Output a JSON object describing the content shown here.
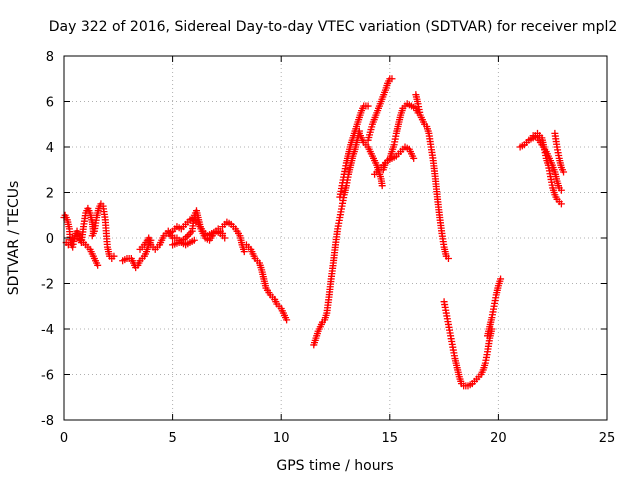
{
  "chart_data": {
    "type": "scatter",
    "title": "Day 322 of 2016, Sidereal Day-to-day VTEC variation (SDTVAR) for receiver mpl2",
    "xlabel": "GPS time / hours",
    "ylabel": "SDTVAR / TECUs",
    "xlim": [
      0,
      25
    ],
    "ylim": [
      -8,
      8
    ],
    "x_ticks": [
      0,
      5,
      10,
      15,
      20,
      25
    ],
    "y_ticks": [
      -8,
      -6,
      -4,
      -2,
      0,
      2,
      4,
      6,
      8
    ],
    "grid": true,
    "marker": "plus",
    "series": [
      {
        "color": "#ff0000",
        "tracks": [
          [
            [
              0.0,
              0.9
            ],
            [
              0.05,
              1.0
            ],
            [
              0.15,
              0.8
            ],
            [
              0.25,
              0.4
            ],
            [
              0.3,
              -0.2
            ],
            [
              0.4,
              -0.4
            ],
            [
              0.5,
              0.1
            ],
            [
              0.6,
              0.3
            ],
            [
              0.7,
              0.1
            ],
            [
              0.8,
              -0.2
            ],
            [
              0.9,
              0.5
            ],
            [
              1.0,
              1.1
            ],
            [
              1.1,
              1.3
            ],
            [
              1.2,
              1.1
            ],
            [
              1.3,
              0.7
            ],
            [
              1.35,
              0.3
            ]
          ],
          [
            [
              0.1,
              -0.2
            ],
            [
              0.2,
              -0.3
            ],
            [
              0.3,
              -0.2
            ],
            [
              0.4,
              0.0
            ],
            [
              0.6,
              0.0
            ],
            [
              0.8,
              -0.1
            ],
            [
              1.0,
              -0.3
            ],
            [
              1.2,
              -0.5
            ],
            [
              1.4,
              -0.9
            ],
            [
              1.5,
              -1.1
            ],
            [
              1.55,
              -1.2
            ]
          ],
          [
            [
              1.3,
              0.1
            ],
            [
              1.4,
              0.3
            ],
            [
              1.5,
              0.9
            ],
            [
              1.6,
              1.3
            ],
            [
              1.7,
              1.5
            ],
            [
              1.8,
              1.4
            ],
            [
              1.9,
              0.8
            ],
            [
              1.95,
              0.2
            ],
            [
              2.0,
              -0.4
            ],
            [
              2.05,
              -0.6
            ],
            [
              2.1,
              -0.8
            ],
            [
              2.2,
              -0.9
            ],
            [
              2.3,
              -0.8
            ]
          ],
          [
            [
              2.7,
              -1.0
            ],
            [
              2.9,
              -0.9
            ],
            [
              3.1,
              -0.9
            ],
            [
              3.2,
              -1.1
            ],
            [
              3.3,
              -1.3
            ],
            [
              3.4,
              -1.2
            ],
            [
              3.5,
              -1.0
            ],
            [
              3.6,
              -0.9
            ],
            [
              3.7,
              -0.8
            ],
            [
              3.8,
              -0.6
            ],
            [
              3.9,
              -0.3
            ],
            [
              4.0,
              -0.1
            ]
          ],
          [
            [
              3.5,
              -0.5
            ],
            [
              3.7,
              -0.3
            ],
            [
              3.9,
              0.0
            ],
            [
              4.0,
              -0.3
            ],
            [
              4.2,
              -0.5
            ],
            [
              4.4,
              -0.3
            ],
            [
              4.6,
              0.1
            ],
            [
              4.8,
              0.3
            ],
            [
              5.0,
              0.0
            ],
            [
              5.2,
              0.0
            ],
            [
              5.4,
              -0.2
            ],
            [
              5.6,
              -0.3
            ],
            [
              5.8,
              -0.2
            ],
            [
              6.0,
              -0.1
            ]
          ],
          [
            [
              4.8,
              0.2
            ],
            [
              5.0,
              0.3
            ],
            [
              5.2,
              0.5
            ],
            [
              5.4,
              0.4
            ],
            [
              5.6,
              0.6
            ],
            [
              5.8,
              0.8
            ],
            [
              6.0,
              0.9
            ],
            [
              6.2,
              0.6
            ],
            [
              6.4,
              0.3
            ],
            [
              6.6,
              0.1
            ],
            [
              6.8,
              0.2
            ],
            [
              7.0,
              0.3
            ],
            [
              7.2,
              0.2
            ],
            [
              7.4,
              0.0
            ]
          ],
          [
            [
              5.0,
              -0.3
            ],
            [
              5.3,
              -0.2
            ],
            [
              5.6,
              0.0
            ],
            [
              5.9,
              0.3
            ],
            [
              6.0,
              1.0
            ],
            [
              6.1,
              1.2
            ],
            [
              6.2,
              0.8
            ],
            [
              6.3,
              0.4
            ],
            [
              6.5,
              0.0
            ],
            [
              6.7,
              -0.1
            ],
            [
              6.9,
              0.2
            ],
            [
              7.1,
              0.4
            ],
            [
              7.3,
              0.2
            ]
          ],
          [
            [
              7.3,
              0.5
            ],
            [
              7.5,
              0.7
            ],
            [
              7.7,
              0.6
            ],
            [
              7.9,
              0.4
            ],
            [
              8.1,
              0.1
            ],
            [
              8.2,
              -0.3
            ],
            [
              8.3,
              -0.6
            ]
          ],
          [
            [
              8.4,
              -0.3
            ],
            [
              8.6,
              -0.5
            ],
            [
              8.8,
              -0.9
            ],
            [
              9.0,
              -1.1
            ],
            [
              9.1,
              -1.4
            ],
            [
              9.2,
              -1.8
            ],
            [
              9.3,
              -2.2
            ],
            [
              9.5,
              -2.5
            ],
            [
              9.7,
              -2.7
            ],
            [
              9.8,
              -2.9
            ],
            [
              9.9,
              -3.0
            ],
            [
              10.0,
              -3.1
            ],
            [
              10.1,
              -3.3
            ],
            [
              10.2,
              -3.5
            ],
            [
              10.25,
              -3.6
            ]
          ],
          [
            [
              11.5,
              -4.7
            ],
            [
              11.6,
              -4.4
            ],
            [
              11.7,
              -4.1
            ],
            [
              11.8,
              -3.9
            ],
            [
              11.9,
              -3.7
            ],
            [
              12.0,
              -3.6
            ],
            [
              12.1,
              -3.3
            ],
            [
              12.2,
              -2.6
            ],
            [
              12.3,
              -1.8
            ],
            [
              12.4,
              -1.1
            ],
            [
              12.5,
              -0.3
            ],
            [
              12.6,
              0.4
            ],
            [
              12.7,
              0.9
            ],
            [
              12.8,
              1.4
            ],
            [
              12.9,
              1.9
            ],
            [
              13.0,
              2.3
            ],
            [
              13.1,
              2.8
            ],
            [
              13.2,
              3.2
            ],
            [
              13.3,
              3.6
            ],
            [
              13.4,
              3.9
            ],
            [
              13.5,
              4.3
            ],
            [
              13.6,
              4.7
            ]
          ],
          [
            [
              12.7,
              1.8
            ],
            [
              12.8,
              2.3
            ],
            [
              12.9,
              2.8
            ],
            [
              13.0,
              3.3
            ],
            [
              13.1,
              3.7
            ],
            [
              13.2,
              4.1
            ],
            [
              13.3,
              4.4
            ],
            [
              13.4,
              4.7
            ],
            [
              13.5,
              5.0
            ],
            [
              13.6,
              5.3
            ],
            [
              13.7,
              5.6
            ],
            [
              13.8,
              5.8
            ],
            [
              13.9,
              5.8
            ],
            [
              14.0,
              5.8
            ]
          ],
          [
            [
              13.6,
              4.6
            ],
            [
              13.8,
              4.2
            ],
            [
              14.0,
              4.0
            ],
            [
              14.2,
              3.6
            ],
            [
              14.4,
              3.2
            ],
            [
              14.5,
              2.9
            ],
            [
              14.6,
              2.6
            ],
            [
              14.65,
              2.3
            ]
          ],
          [
            [
              14.3,
              2.8
            ],
            [
              14.5,
              3.0
            ],
            [
              14.7,
              3.2
            ],
            [
              14.9,
              3.4
            ],
            [
              15.1,
              3.5
            ],
            [
              15.3,
              3.6
            ],
            [
              15.5,
              3.8
            ],
            [
              15.7,
              4.0
            ],
            [
              15.9,
              3.9
            ],
            [
              16.0,
              3.7
            ],
            [
              16.1,
              3.5
            ]
          ],
          [
            [
              14.0,
              4.3
            ],
            [
              14.2,
              5.0
            ],
            [
              14.4,
              5.5
            ],
            [
              14.6,
              6.0
            ],
            [
              14.8,
              6.5
            ],
            [
              14.9,
              6.8
            ],
            [
              15.0,
              7.0
            ],
            [
              15.1,
              7.0
            ]
          ],
          [
            [
              14.7,
              3.0
            ],
            [
              14.8,
              3.3
            ],
            [
              15.0,
              3.5
            ],
            [
              15.1,
              3.8
            ],
            [
              15.2,
              4.1
            ],
            [
              15.3,
              4.6
            ],
            [
              15.4,
              5.0
            ],
            [
              15.5,
              5.4
            ],
            [
              15.6,
              5.7
            ],
            [
              15.8,
              5.9
            ],
            [
              16.0,
              5.8
            ],
            [
              16.2,
              5.7
            ],
            [
              16.3,
              5.5
            ]
          ],
          [
            [
              16.2,
              6.3
            ],
            [
              16.3,
              5.9
            ],
            [
              16.4,
              5.4
            ],
            [
              16.5,
              5.2
            ],
            [
              16.6,
              5.0
            ],
            [
              16.7,
              4.9
            ],
            [
              16.8,
              4.6
            ],
            [
              16.9,
              4.0
            ],
            [
              17.0,
              3.4
            ],
            [
              17.1,
              2.6
            ],
            [
              17.2,
              1.7
            ],
            [
              17.3,
              0.9
            ],
            [
              17.4,
              0.2
            ],
            [
              17.5,
              -0.4
            ],
            [
              17.6,
              -0.8
            ],
            [
              17.7,
              -0.9
            ]
          ],
          [
            [
              17.5,
              -2.8
            ],
            [
              17.6,
              -3.3
            ],
            [
              17.7,
              -3.8
            ],
            [
              17.8,
              -4.3
            ],
            [
              17.9,
              -4.8
            ],
            [
              18.0,
              -5.3
            ],
            [
              18.1,
              -5.7
            ],
            [
              18.2,
              -6.1
            ],
            [
              18.3,
              -6.4
            ],
            [
              18.4,
              -6.5
            ],
            [
              18.6,
              -6.5
            ],
            [
              18.8,
              -6.4
            ],
            [
              19.0,
              -6.2
            ],
            [
              19.2,
              -6.0
            ],
            [
              19.3,
              -5.8
            ],
            [
              19.4,
              -5.5
            ],
            [
              19.5,
              -5.0
            ],
            [
              19.6,
              -4.4
            ],
            [
              19.7,
              -4.0
            ]
          ],
          [
            [
              19.5,
              -4.3
            ],
            [
              19.6,
              -3.9
            ],
            [
              19.7,
              -3.5
            ],
            [
              19.8,
              -3.0
            ],
            [
              19.9,
              -2.5
            ],
            [
              20.0,
              -2.1
            ],
            [
              20.1,
              -1.8
            ]
          ],
          [
            [
              21.0,
              4.0
            ],
            [
              21.2,
              4.1
            ],
            [
              21.4,
              4.3
            ],
            [
              21.6,
              4.4
            ],
            [
              21.8,
              4.6
            ],
            [
              22.0,
              4.4
            ],
            [
              22.1,
              4.0
            ],
            [
              22.2,
              3.5
            ],
            [
              22.3,
              3.2
            ],
            [
              22.4,
              2.7
            ],
            [
              22.5,
              2.2
            ],
            [
              22.6,
              1.9
            ],
            [
              22.7,
              1.7
            ],
            [
              22.8,
              1.6
            ],
            [
              22.9,
              1.5
            ]
          ],
          [
            [
              21.6,
              4.5
            ],
            [
              21.8,
              4.4
            ],
            [
              22.0,
              4.1
            ],
            [
              22.2,
              3.8
            ],
            [
              22.4,
              3.4
            ],
            [
              22.6,
              2.9
            ],
            [
              22.7,
              2.5
            ],
            [
              22.8,
              2.2
            ],
            [
              22.9,
              2.1
            ]
          ],
          [
            [
              22.6,
              4.6
            ],
            [
              22.7,
              4.0
            ],
            [
              22.8,
              3.5
            ],
            [
              22.9,
              3.1
            ],
            [
              23.0,
              2.9
            ]
          ]
        ]
      }
    ]
  }
}
